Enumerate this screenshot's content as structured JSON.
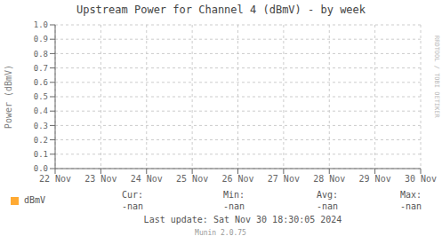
{
  "chart_data": {
    "type": "line",
    "title": "Upstream Power for Channel 4 (dBmV) - by week",
    "y_label": "Power (dBmV)",
    "categories": [
      "22 Nov",
      "23 Nov",
      "24 Nov",
      "25 Nov",
      "26 Nov",
      "27 Nov",
      "28 Nov",
      "29 Nov",
      "30 Nov"
    ],
    "series": [
      {
        "name": "dBmV",
        "color": "#ffaa33",
        "values": [
          null,
          null,
          null,
          null,
          null,
          null,
          null,
          null,
          null
        ]
      }
    ],
    "ylim": [
      0.0,
      1.0
    ],
    "yticks": [
      {
        "value": 0.0,
        "label": "0.0"
      },
      0.1,
      0.2,
      0.3,
      0.4,
      0.5,
      0.6,
      0.7,
      0.8,
      0.9,
      {
        "value": 1.0,
        "label": "1.0"
      }
    ],
    "grid": true,
    "legend": "bottom",
    "annotations": [
      "Cur:",
      "Min:",
      "Avg:",
      "Max:",
      "-nan",
      "-nan",
      "-nan",
      "-nan",
      "Last update: Sat Nov 30 18:30:05 2024",
      "Munin 2.0.75",
      "RRDTOOL / TOBI OETIKER"
    ]
  }
}
